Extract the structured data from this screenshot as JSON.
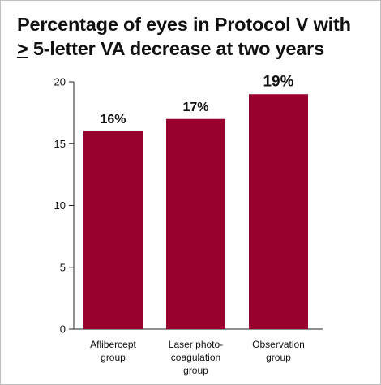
{
  "title": {
    "line1": "Percentage of eyes in Protocol V with",
    "line2_symbol": ">",
    "line2_rest": " 5-letter VA decrease at two years"
  },
  "chart_data": {
    "type": "bar",
    "categories": [
      [
        "Aflibercept",
        "group"
      ],
      [
        "Laser photo-",
        "coagulation",
        "group"
      ],
      [
        "Observation",
        "group"
      ]
    ],
    "values": [
      16,
      17,
      19
    ],
    "data_labels": [
      "16%",
      "17%",
      "19%"
    ],
    "ylim": [
      0,
      20
    ],
    "yticks": [
      0,
      5,
      10,
      15,
      20
    ],
    "xlabel": "",
    "ylabel": "",
    "grid": false,
    "bar_color": "#98002e"
  }
}
